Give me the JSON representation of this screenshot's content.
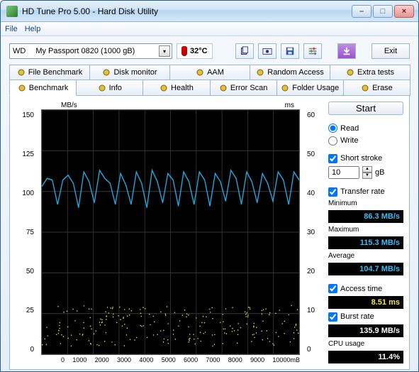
{
  "window": {
    "title": "HD Tune Pro 5.00 - Hard Disk Utility",
    "menu": {
      "file": "File",
      "help": "Help"
    },
    "winbtns": {
      "min": "–",
      "max": "□",
      "close": "×"
    }
  },
  "toolbar": {
    "drive_vendor": "WD",
    "drive_model": "My Passport 0820 (1000 gB)",
    "temperature_label": "32°C",
    "exit_label": "Exit",
    "icons": {
      "copy": "copy-icon",
      "screenshot": "camera-icon",
      "save": "save-icon",
      "settings": "settings-icon",
      "download": "download-icon"
    }
  },
  "tabs_row1": [
    {
      "label": "File Benchmark",
      "icon": "file-bench-icon"
    },
    {
      "label": "Disk monitor",
      "icon": "monitor-icon"
    },
    {
      "label": "AAM",
      "icon": "speaker-icon"
    },
    {
      "label": "Random Access",
      "icon": "random-icon"
    },
    {
      "label": "Extra tests",
      "icon": "extra-icon"
    }
  ],
  "tabs_row2": [
    {
      "label": "Benchmark",
      "icon": "benchmark-icon",
      "active": true
    },
    {
      "label": "Info",
      "icon": "info-icon"
    },
    {
      "label": "Health",
      "icon": "health-icon"
    },
    {
      "label": "Error Scan",
      "icon": "error-icon"
    },
    {
      "label": "Folder Usage",
      "icon": "folder-icon"
    },
    {
      "label": "Erase",
      "icon": "erase-icon"
    }
  ],
  "side": {
    "start_label": "Start",
    "read_label": "Read",
    "write_label": "Write",
    "read_selected": true,
    "short_stroke_label": "Short stroke",
    "short_stroke_checked": true,
    "short_stroke_value": "10",
    "short_stroke_unit": "gB",
    "transfer_rate_label": "Transfer rate",
    "transfer_rate_checked": true,
    "min_label": "Minimum",
    "min_value": "86.3 MB/s",
    "max_label": "Maximum",
    "max_value": "115.3 MB/s",
    "avg_label": "Average",
    "avg_value": "104.7 MB/s",
    "access_label": "Access time",
    "access_checked": true,
    "access_value": "8.51 ms",
    "burst_label": "Burst rate",
    "burst_checked": true,
    "burst_value": "135.9 MB/s",
    "cpu_label": "CPU usage",
    "cpu_value": "11.4%"
  },
  "chart": {
    "left_unit": "MB/s",
    "right_unit": "ms",
    "x_unit": "mB",
    "left_ticks": [
      "150",
      "125",
      "100",
      "75",
      "50",
      "25",
      "0"
    ],
    "right_ticks": [
      "60",
      "50",
      "40",
      "30",
      "20",
      "10",
      "0"
    ],
    "x_ticks": [
      "0",
      "1000",
      "2000",
      "3000",
      "4000",
      "5000",
      "6000",
      "7000",
      "8000",
      "9000",
      "10000"
    ],
    "ylim_left": [
      0,
      150
    ],
    "xlim": [
      0,
      10000
    ],
    "grid_color": "#333333",
    "bg_color": "#000000",
    "transfer_color": "#1fa9e0",
    "scatter_color": "#e8e24a",
    "transfer_series_approx_mbps": [
      103,
      108,
      107,
      92,
      107,
      110,
      105,
      90,
      112,
      106,
      93,
      113,
      108,
      105,
      92,
      111,
      104,
      92,
      112,
      105,
      90,
      113,
      106,
      93,
      111,
      107,
      91,
      112,
      106,
      92,
      112,
      107,
      91,
      111,
      106,
      94,
      113,
      108,
      92,
      112,
      106,
      93,
      111,
      105,
      94,
      112,
      107,
      92,
      112,
      107
    ],
    "scatter_band_mbps": [
      5,
      30
    ],
    "scatter_count_approx": 220
  }
}
